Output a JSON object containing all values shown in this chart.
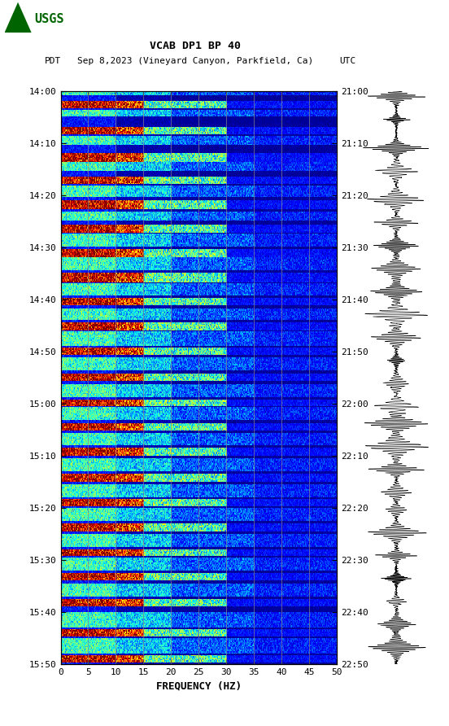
{
  "title_line1": "VCAB DP1 BP 40",
  "title_line2_pdt": "PDT  Sep 8,2023 (Vineyard Canyon, Parkfield, Ca)       UTC",
  "xlabel": "FREQUENCY (HZ)",
  "freq_min": 0,
  "freq_max": 50,
  "pdt_yticks": [
    "14:00",
    "14:10",
    "14:20",
    "14:30",
    "14:40",
    "14:50",
    "15:00",
    "15:10",
    "15:20",
    "15:30",
    "15:40",
    "15:50"
  ],
  "utc_yticks": [
    "21:00",
    "21:10",
    "21:20",
    "21:30",
    "21:40",
    "21:50",
    "22:00",
    "22:10",
    "22:20",
    "22:30",
    "22:40",
    "22:50"
  ],
  "xticks": [
    0,
    5,
    10,
    15,
    20,
    25,
    30,
    35,
    40,
    45,
    50
  ],
  "vertical_lines_freq": [
    5,
    10,
    15,
    20,
    25,
    30,
    35,
    40,
    45
  ],
  "background_color": "#ffffff",
  "colormap": "jet",
  "logo_color": "#006400",
  "n_time": 440,
  "n_freq": 400
}
